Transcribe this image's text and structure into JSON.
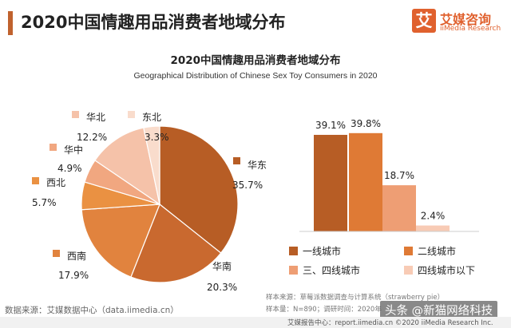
{
  "header": {
    "title": "2020中国情趣用品消费者地域分布"
  },
  "logo": {
    "mark": "艾",
    "name_cn": "艾媒咨询",
    "name_en": "iiMedia Research"
  },
  "chart_data": [
    {
      "type": "pie",
      "title": "2020中国情趣用品消费者地域分布",
      "subtitle": "Geographical Distribution of Chinese Sex Toy Consumers in 2020",
      "categories": [
        "华东",
        "华南",
        "西南",
        "西北",
        "华中",
        "华北",
        "东北"
      ],
      "values": [
        35.7,
        20.3,
        17.9,
        5.7,
        4.9,
        12.2,
        3.3
      ],
      "value_labels": [
        "35.7%",
        "20.3%",
        "17.9%",
        "5.7%",
        "4.9%",
        "12.2%",
        "3.3%"
      ],
      "colors": [
        "#b75d25",
        "#c9692f",
        "#e1833e",
        "#ea9142",
        "#f1a780",
        "#f5c2a9",
        "#f9dccc"
      ]
    },
    {
      "type": "bar",
      "categories": [
        "一线城市",
        "二线城市",
        "三、四线城市",
        "四线城市以下"
      ],
      "values": [
        39.1,
        39.8,
        18.7,
        2.4
      ],
      "value_labels": [
        "39.1%",
        "39.8%",
        "18.7%",
        "2.4%"
      ],
      "colors": [
        "#b75d25",
        "#df7a35",
        "#ee9e74",
        "#f8cbb5"
      ],
      "legend_position": "bottom",
      "ylim": [
        0,
        42
      ]
    }
  ],
  "notes": {
    "source_line": "样本来源：草莓派数据调查与计算系统（strawberry pie）",
    "sample_line": "样本量：N=890；调研时间：2020年"
  },
  "footer": {
    "source": "数据来源：艾媒数据中心（data.iimedia.cn）",
    "report": "艾媒报告中心：report.iimedia.cn  ©2020  iiMedia Research  Inc."
  },
  "watermark": "头条 @新猫网络科技"
}
